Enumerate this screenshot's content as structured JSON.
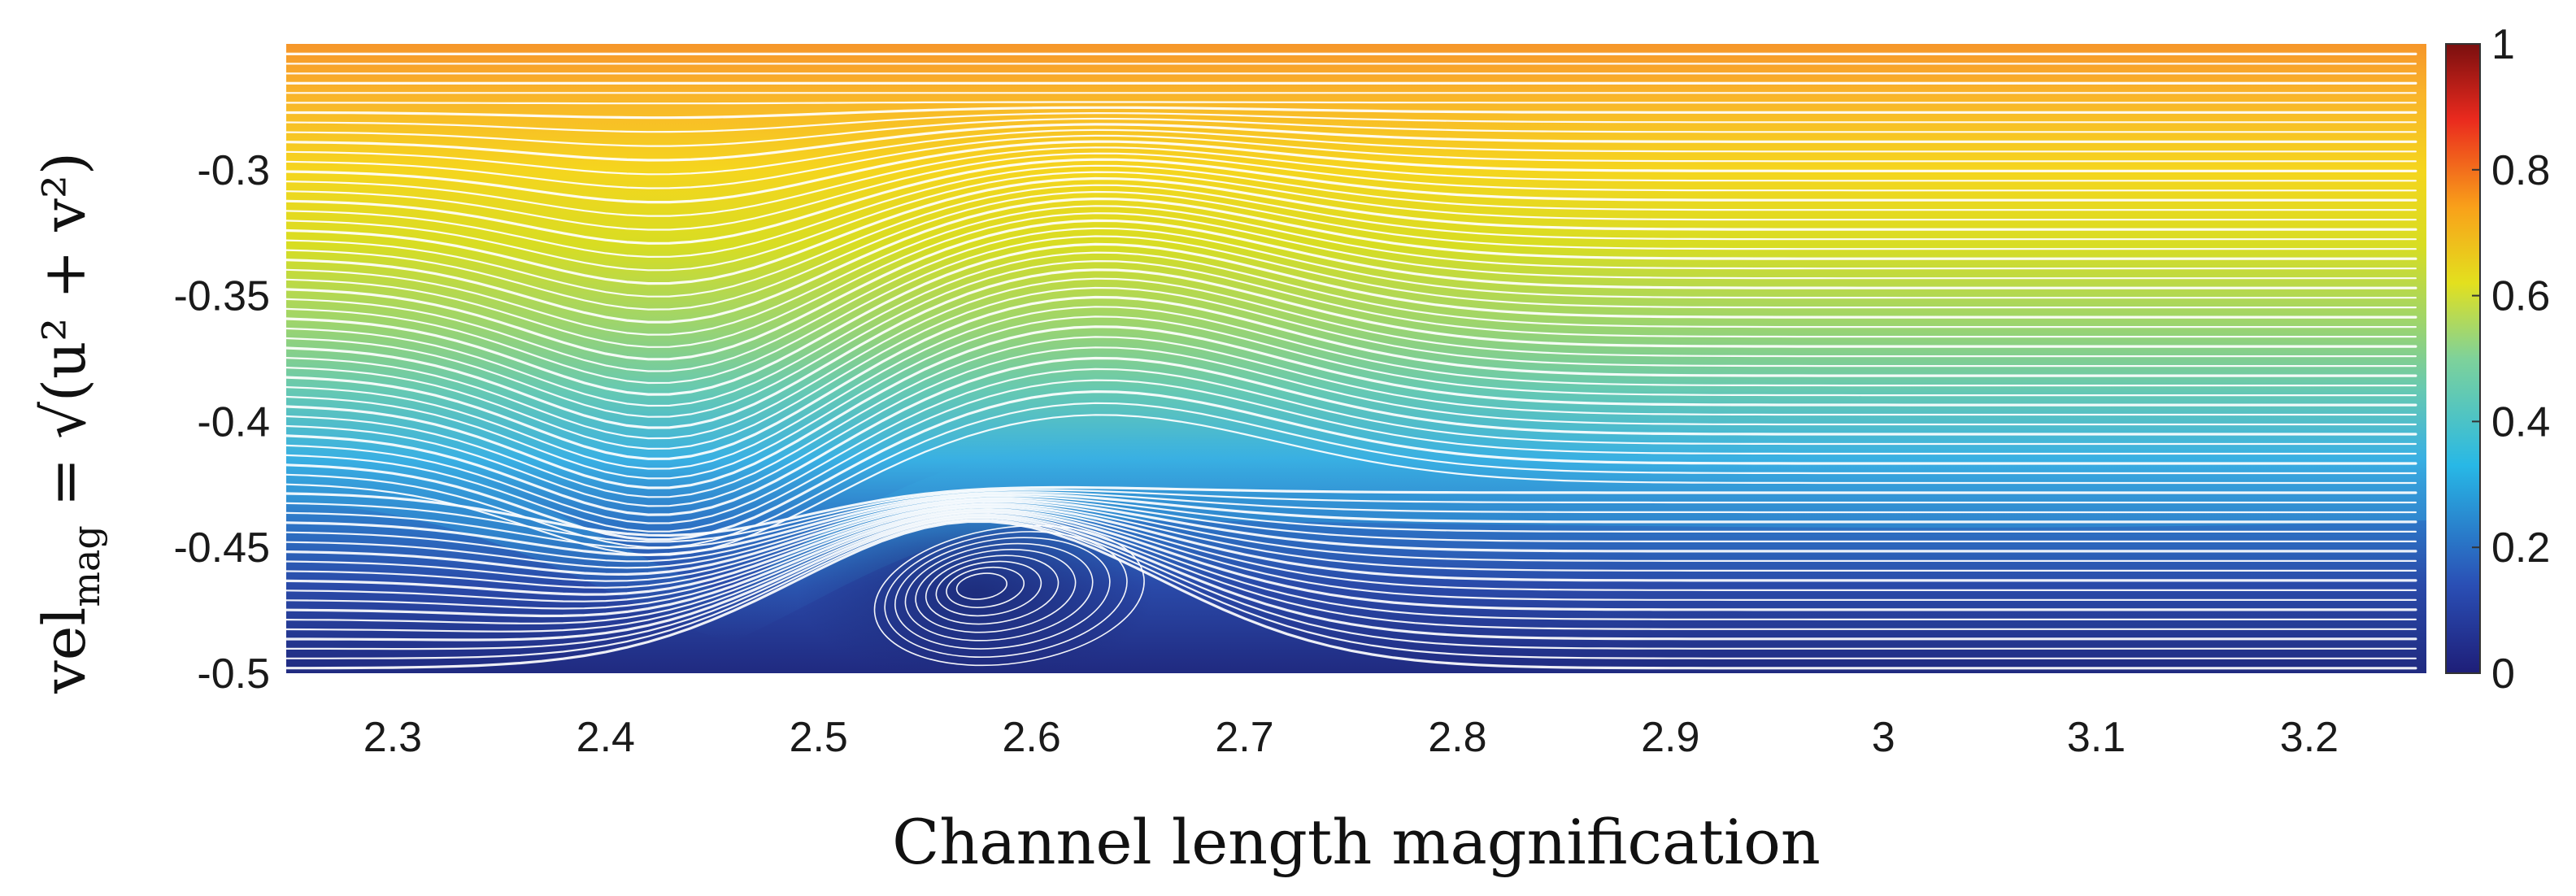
{
  "chart_data": {
    "type": "heatmap",
    "title": "",
    "xlabel": "Channel length magnification",
    "ylabel": {
      "main": "vel",
      "subscript": "mag",
      "expression": " = √(u² + v²)"
    },
    "xlim": [
      2.25,
      3.255
    ],
    "ylim": [
      -0.5,
      -0.25
    ],
    "x_ticks": [
      2.3,
      2.4,
      2.5,
      2.6,
      2.7,
      2.8,
      2.9,
      3.0,
      3.1,
      3.2
    ],
    "x_tick_labels": [
      "2.3",
      "2.4",
      "2.5",
      "2.6",
      "2.7",
      "2.8",
      "2.9",
      "3",
      "3.1",
      "3.2"
    ],
    "y_ticks": [
      -0.3,
      -0.35,
      -0.4,
      -0.45,
      -0.5
    ],
    "y_tick_labels": [
      "-0.3",
      "-0.35",
      "-0.4",
      "-0.45",
      "-0.5"
    ],
    "colorbar": {
      "range": [
        0,
        1
      ],
      "ticks": [
        0,
        0.2,
        0.4,
        0.6,
        0.8,
        1
      ],
      "tick_labels": [
        "0",
        "0.2",
        "0.4",
        "0.6",
        "0.8",
        "1"
      ],
      "colormap": [
        "#1e1e78",
        "#2a4fb5",
        "#28b8e6",
        "#7ed29a",
        "#e3e01e",
        "#f9a11a",
        "#ea2a1e",
        "#7a0f0f"
      ]
    },
    "streamline_color": "#ffffff",
    "field": {
      "description_points": [
        {
          "x": 2.3,
          "y": -0.26,
          "vel": 0.72
        },
        {
          "x": 2.3,
          "y": -0.35,
          "vel": 0.5
        },
        {
          "x": 2.3,
          "y": -0.43,
          "vel": 0.28
        },
        {
          "x": 2.3,
          "y": -0.49,
          "vel": 0.1
        },
        {
          "x": 2.6,
          "y": -0.33,
          "vel": 0.62
        },
        {
          "x": 2.6,
          "y": -0.42,
          "vel": 0.3
        },
        {
          "x": 2.6,
          "y": -0.47,
          "vel": 0.08
        },
        {
          "x": 3.2,
          "y": -0.26,
          "vel": 0.72
        },
        {
          "x": 3.2,
          "y": -0.36,
          "vel": 0.42
        },
        {
          "x": 3.2,
          "y": -0.45,
          "vel": 0.15
        }
      ],
      "vortex_center": {
        "x": 2.575,
        "y": -0.465
      }
    }
  }
}
